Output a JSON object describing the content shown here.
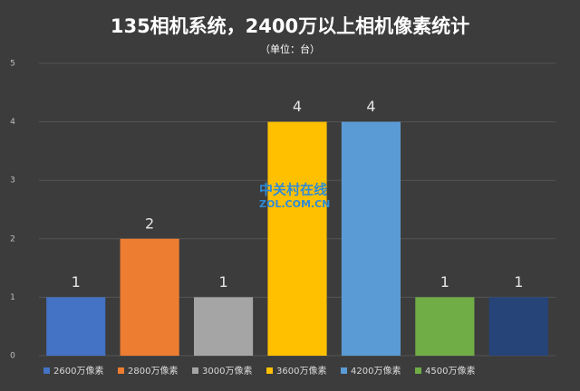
{
  "chart_data": {
    "type": "bar",
    "title": "135相机系统，2400万以上相机像素统计",
    "subtitle": "（单位：台）",
    "categories": [
      "2600万像素",
      "2800万像素",
      "3000万像素",
      "3600万像素",
      "4200万像素",
      "4500万像素",
      null
    ],
    "values": [
      1,
      2,
      1,
      4,
      4,
      1,
      1
    ],
    "colors": [
      "#4472c4",
      "#ed7d31",
      "#a5a5a5",
      "#ffc000",
      "#5b9bd5",
      "#70ad47",
      "#264478"
    ],
    "ylim": [
      0,
      5
    ],
    "yticks": [
      0,
      1,
      2,
      3,
      4,
      5
    ],
    "grid": true,
    "legend": "bottom",
    "watermark": [
      "中关村在线",
      "ZOL.COM.CN"
    ]
  }
}
